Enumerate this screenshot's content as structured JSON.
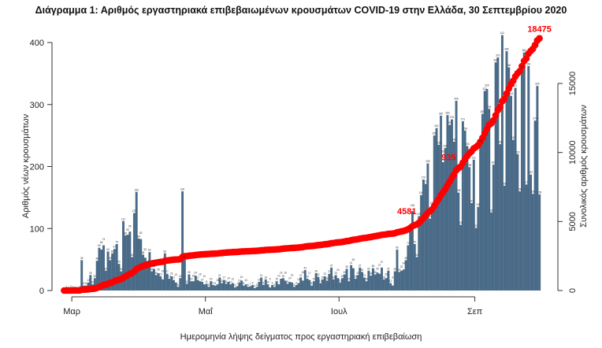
{
  "chart_data": {
    "type": "bar+line",
    "title": "Διάγραμμα 1: Αριθμός εργαστηριακά επιβεβαιωμένων κρουσμάτων COVID-19 στην Ελλάδα, 30 Σεπτεμβρίου 2020",
    "xlabel": "Ημερομηνία λήψης δείγματος προς εργαστηριακή επιβεβαίωση",
    "ylabel_left": "Αριθμός νέων κρουσμάτων",
    "ylabel_right": "Συνολικός αριθμός κρουσμάτων",
    "x_start": "2020-02-26",
    "x_end": "2020-09-30",
    "x_ticks": [
      {
        "date": "2020-03-01",
        "label": "Μαρ"
      },
      {
        "date": "2020-05-01",
        "label": "Μαΐ"
      },
      {
        "date": "2020-07-01",
        "label": "Ιουλ"
      },
      {
        "date": "2020-09-01",
        "label": "Σεπ"
      }
    ],
    "ylim_left": [
      0,
      430
    ],
    "yticks_left": [
      0,
      100,
      200,
      300,
      400
    ],
    "ylim_right": [
      0,
      18900
    ],
    "yticks_right": [
      0,
      5000,
      10000,
      15000
    ],
    "grid": false,
    "colors": {
      "bars": "#4a6b88",
      "cumulative": "#ff0000",
      "bar_labels": "#333333"
    },
    "series": [
      {
        "kind": "bar",
        "axis": "left",
        "values": [
          0,
          2,
          1,
          3,
          2,
          1,
          0,
          2,
          49,
          8,
          8,
          13,
          25,
          10,
          20,
          48,
          69,
          66,
          73,
          32,
          63,
          49,
          60,
          67,
          75,
          43,
          31,
          112,
          89,
          90,
          95,
          54,
          125,
          159,
          84,
          83,
          58,
          53,
          43,
          62,
          31,
          35,
          25,
          28,
          23,
          18,
          60,
          27,
          19,
          23,
          17,
          13,
          6,
          20,
          160,
          50,
          11,
          26,
          15,
          15,
          24,
          17,
          15,
          14,
          10,
          11,
          6,
          15,
          9,
          8,
          10,
          21,
          12,
          17,
          11,
          14,
          10,
          12,
          5,
          7,
          13,
          16,
          8,
          10,
          6,
          7,
          9,
          4,
          6,
          14,
          21,
          9,
          18,
          10,
          5,
          9,
          6,
          15,
          10,
          19,
          20,
          16,
          11,
          14,
          13,
          6,
          9,
          12,
          21,
          16,
          33,
          19,
          17,
          8,
          15,
          28,
          22,
          12,
          18,
          23,
          16,
          27,
          37,
          18,
          25,
          20,
          13,
          20,
          26,
          35,
          15,
          41,
          36,
          19,
          25,
          37,
          30,
          21,
          15,
          32,
          24,
          36,
          26,
          29,
          27,
          37,
          18,
          20,
          32,
          12,
          8,
          31,
          66,
          30,
          32,
          34,
          49,
          73,
          98,
          128,
          75,
          54,
          120,
          154,
          179,
          172,
          205,
          116,
          138,
          250,
          262,
          235,
          282,
          207,
          230,
          283,
          267,
          276,
          240,
          306,
          158,
          106,
          273,
          258,
          233,
          199,
          141,
          211,
          101,
          135,
          238,
          285,
          322,
          325,
          293,
          126,
          203,
          368,
          376,
          236,
          412,
          169,
          386,
          360,
          314,
          243,
          327,
          220,
          160,
          357,
          384,
          171,
          362,
          187,
          156,
          274,
          330,
          155
        ]
      },
      {
        "kind": "line",
        "axis": "right",
        "cumulative_of_bars": true
      }
    ],
    "annotations": [
      {
        "date": "2020-08-07",
        "text": "4581"
      },
      {
        "date": "2020-08-25",
        "text": "935"
      },
      {
        "date": "2020-09-30",
        "text": "18475"
      }
    ]
  }
}
